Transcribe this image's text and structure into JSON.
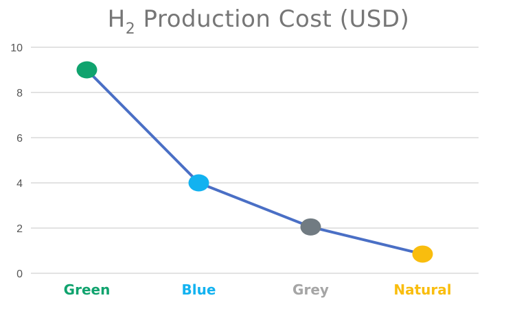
{
  "chart_data": {
    "type": "line",
    "title_prefix": "H",
    "title_subscript": "2",
    "title_suffix": " Production Cost (USD)",
    "categories": [
      "Green",
      "Blue",
      "Grey",
      "Natural"
    ],
    "category_colors": [
      "#10a36e",
      "#12b2f0",
      "#a5a5a5",
      "#f9bd0e"
    ],
    "series": [
      {
        "values": [
          9.0,
          4.0,
          2.05,
          0.85
        ],
        "line_color": "#4a6fc5",
        "point_colors": [
          "#10a36e",
          "#12b2f0",
          "#717b82",
          "#f9bd0e"
        ]
      }
    ],
    "ylim": [
      0,
      10
    ],
    "yticks": [
      "0",
      "2",
      "4",
      "6",
      "8",
      "10"
    ],
    "grid": true
  }
}
